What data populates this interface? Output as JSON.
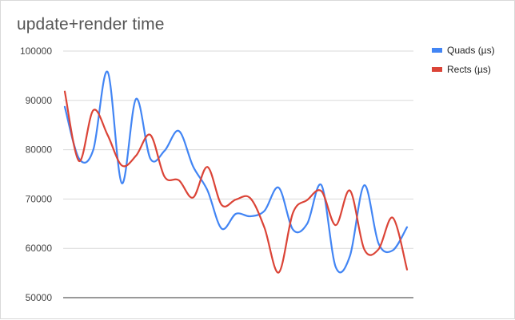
{
  "chart_data": {
    "type": "line",
    "title": "update+render time",
    "xlabel": "",
    "ylabel": "",
    "ylim": [
      45000,
      100000
    ],
    "y_ticks": [
      "100000",
      "90000",
      "80000",
      "70000",
      "60000",
      "50000"
    ],
    "grid": true,
    "legend_position": "right",
    "series": [
      {
        "name": "Quads (µs)",
        "color": "#4285f4",
        "values": [
          88700,
          78200,
          80000,
          95800,
          73200,
          90300,
          78200,
          79800,
          83800,
          76600,
          71800,
          64000,
          67000,
          66500,
          67600,
          72300,
          63800,
          65000,
          72800,
          56200,
          58500,
          72800,
          61000,
          59600,
          64300
        ]
      },
      {
        "name": "Rects (µs)",
        "color": "#db4437",
        "values": [
          91800,
          77700,
          88000,
          83000,
          76800,
          78800,
          83000,
          74500,
          73800,
          70300,
          76500,
          68800,
          69900,
          70200,
          64200,
          55100,
          67200,
          69800,
          71600,
          64700,
          71700,
          59800,
          59800,
          66200,
          55700
        ]
      }
    ]
  }
}
